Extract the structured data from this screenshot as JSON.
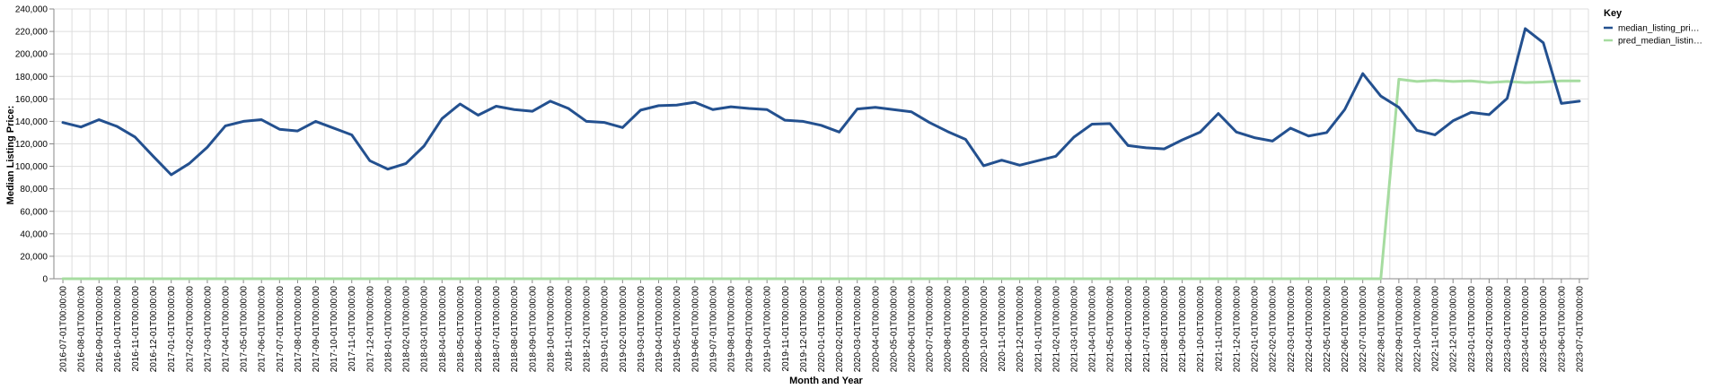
{
  "chart_data": {
    "type": "line",
    "xlabel": "Month and Year",
    "ylabel": "Median Listing Price:",
    "ylim": [
      0,
      240000
    ],
    "yticks": [
      0,
      20000,
      40000,
      60000,
      80000,
      100000,
      120000,
      140000,
      160000,
      180000,
      200000,
      220000,
      240000
    ],
    "ytick_labels": [
      "0",
      "20,000",
      "40,000",
      "60,000",
      "80,000",
      "100,000",
      "120,000",
      "140,000",
      "160,000",
      "180,000",
      "200,000",
      "220,000",
      "240,000"
    ],
    "grid": true,
    "legend": {
      "title": "Key",
      "placement": "top-right"
    },
    "x": [
      "2016-07-01T00:00:00",
      "2016-08-01T00:00:00",
      "2016-09-01T00:00:00",
      "2016-10-01T00:00:00",
      "2016-11-01T00:00:00",
      "2016-12-01T00:00:00",
      "2017-01-01T00:00:00",
      "2017-02-01T00:00:00",
      "2017-03-01T00:00:00",
      "2017-04-01T00:00:00",
      "2017-05-01T00:00:00",
      "2017-06-01T00:00:00",
      "2017-07-01T00:00:00",
      "2017-08-01T00:00:00",
      "2017-09-01T00:00:00",
      "2017-10-01T00:00:00",
      "2017-11-01T00:00:00",
      "2017-12-01T00:00:00",
      "2018-01-01T00:00:00",
      "2018-02-01T00:00:00",
      "2018-03-01T00:00:00",
      "2018-04-01T00:00:00",
      "2018-05-01T00:00:00",
      "2018-06-01T00:00:00",
      "2018-07-01T00:00:00",
      "2018-08-01T00:00:00",
      "2018-09-01T00:00:00",
      "2018-10-01T00:00:00",
      "2018-11-01T00:00:00",
      "2018-12-01T00:00:00",
      "2019-01-01T00:00:00",
      "2019-02-01T00:00:00",
      "2019-03-01T00:00:00",
      "2019-04-01T00:00:00",
      "2019-05-01T00:00:00",
      "2019-06-01T00:00:00",
      "2019-07-01T00:00:00",
      "2019-08-01T00:00:00",
      "2019-09-01T00:00:00",
      "2019-10-01T00:00:00",
      "2019-11-01T00:00:00",
      "2019-12-01T00:00:00",
      "2020-01-01T00:00:00",
      "2020-02-01T00:00:00",
      "2020-03-01T00:00:00",
      "2020-04-01T00:00:00",
      "2020-05-01T00:00:00",
      "2020-06-01T00:00:00",
      "2020-07-01T00:00:00",
      "2020-08-01T00:00:00",
      "2020-09-01T00:00:00",
      "2020-10-01T00:00:00",
      "2020-11-01T00:00:00",
      "2020-12-01T00:00:00",
      "2021-01-01T00:00:00",
      "2021-02-01T00:00:00",
      "2021-03-01T00:00:00",
      "2021-04-01T00:00:00",
      "2021-05-01T00:00:00",
      "2021-06-01T00:00:00",
      "2021-07-01T00:00:00",
      "2021-08-01T00:00:00",
      "2021-09-01T00:00:00",
      "2021-10-01T00:00:00",
      "2021-11-01T00:00:00",
      "2021-12-01T00:00:00",
      "2022-01-01T00:00:00",
      "2022-02-01T00:00:00",
      "2022-03-01T00:00:00",
      "2022-04-01T00:00:00",
      "2022-05-01T00:00:00",
      "2022-06-01T00:00:00",
      "2022-07-01T00:00:00",
      "2022-08-01T00:00:00",
      "2022-09-01T00:00:00",
      "2022-10-01T00:00:00",
      "2022-11-01T00:00:00",
      "2022-12-01T00:00:00",
      "2023-01-01T00:00:00",
      "2023-02-01T00:00:00",
      "2023-03-01T00:00:00",
      "2023-04-01T00:00:00",
      "2023-05-01T00:00:00",
      "2023-06-01T00:00:00",
      "2023-07-01T00:00:00"
    ],
    "series": [
      {
        "name": "median_listing_pri…",
        "color": "#23508f",
        "values": [
          139000,
          135000,
          141500,
          135500,
          126000,
          109000,
          92500,
          102500,
          117000,
          136000,
          140000,
          141500,
          133000,
          131500,
          140000,
          134000,
          128000,
          105000,
          97500,
          102500,
          118000,
          142500,
          155500,
          145500,
          153500,
          150500,
          149000,
          158000,
          151500,
          140000,
          139000,
          134500,
          150000,
          154000,
          154500,
          157000,
          150500,
          153000,
          151500,
          150500,
          141000,
          140000,
          136500,
          130500,
          151000,
          152500,
          150500,
          148500,
          139000,
          131000,
          124000,
          100500,
          105500,
          101000,
          105000,
          109000,
          126000,
          137500,
          138000,
          118500,
          116500,
          115500,
          123500,
          130500,
          147000,
          130500,
          125500,
          122500,
          134000,
          127000,
          130000,
          150500,
          182500,
          162500,
          152500,
          132000,
          128000,
          140500,
          148000,
          146000,
          160500,
          222500,
          210000,
          156000,
          158000
        ]
      },
      {
        "name": "pred_median_listin…",
        "color": "#a6dca0",
        "values": [
          0,
          0,
          0,
          0,
          0,
          0,
          0,
          0,
          0,
          0,
          0,
          0,
          0,
          0,
          0,
          0,
          0,
          0,
          0,
          0,
          0,
          0,
          0,
          0,
          0,
          0,
          0,
          0,
          0,
          0,
          0,
          0,
          0,
          0,
          0,
          0,
          0,
          0,
          0,
          0,
          0,
          0,
          0,
          0,
          0,
          0,
          0,
          0,
          0,
          0,
          0,
          0,
          0,
          0,
          0,
          0,
          0,
          0,
          0,
          0,
          0,
          0,
          0,
          0,
          0,
          0,
          0,
          0,
          0,
          0,
          0,
          0,
          0,
          0,
          177500,
          175500,
          176500,
          175500,
          176000,
          174500,
          175500,
          174500,
          175000,
          176000,
          176000
        ]
      }
    ]
  }
}
